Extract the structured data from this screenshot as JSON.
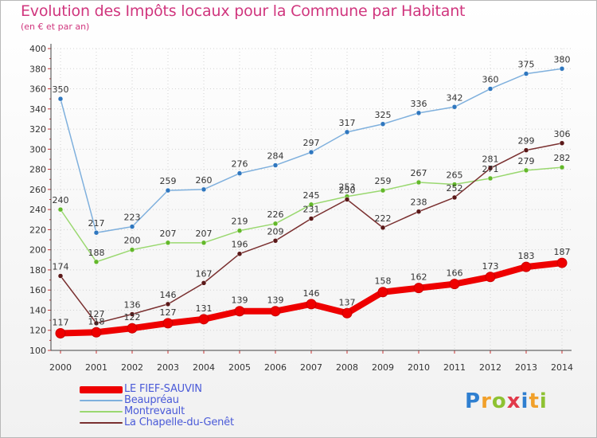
{
  "title": "Evolution des Impôts locaux pour la Commune par Habitant",
  "subtitle": "(en € et par an)",
  "brand": {
    "p": "P",
    "r": "r",
    "o": "o",
    "x": "x",
    "i1": "i",
    "t": "t",
    "i2": "i"
  },
  "colors": {
    "title": "#d0367e",
    "legend_text": "#4a5ad8",
    "grid": "#d2d2d2",
    "axis": "#444444"
  },
  "chart_data": {
    "type": "line",
    "title": "Evolution des Impôts locaux pour la Commune par Habitant",
    "subtitle": "(en € et par an)",
    "xlabel": "",
    "ylabel": "",
    "x": [
      2000,
      2001,
      2002,
      2003,
      2004,
      2005,
      2006,
      2007,
      2008,
      2009,
      2010,
      2011,
      2012,
      2013,
      2014
    ],
    "ylim": [
      100,
      400
    ],
    "yticks": [
      100,
      120,
      140,
      160,
      180,
      200,
      220,
      240,
      260,
      280,
      300,
      320,
      340,
      360,
      380,
      400
    ],
    "grid": true,
    "legend_position": "bottom-left",
    "series": [
      {
        "name": "LE FIEF-SAUVIN",
        "color": "#ee0000",
        "marker": "#ee0000",
        "values": [
          117,
          118,
          122,
          127,
          131,
          139,
          139,
          146,
          137,
          158,
          162,
          166,
          173,
          183,
          187
        ],
        "labels": [
          "117",
          "118",
          "122",
          "127",
          "131",
          "139",
          "139",
          "146",
          "137",
          "158",
          "162",
          "166",
          "173",
          "183",
          "187"
        ],
        "bold": true
      },
      {
        "name": "Beaupréau",
        "color": "#7fb0dd",
        "marker": "#2f77bf",
        "values": [
          350,
          217,
          223,
          259,
          260,
          276,
          284,
          297,
          317,
          325,
          336,
          342,
          360,
          375,
          380
        ],
        "labels": [
          "350",
          "217",
          "223",
          "259",
          "260",
          "276",
          "284",
          "297",
          "317",
          "325",
          "336",
          "342",
          "360",
          "375",
          "380"
        ]
      },
      {
        "name": "Montrevault",
        "color": "#9ad870",
        "marker": "#63b82a",
        "values": [
          240,
          188,
          200,
          207,
          207,
          219,
          226,
          245,
          253,
          259,
          267,
          265,
          271,
          279,
          282
        ],
        "labels": [
          "240",
          "188",
          "200",
          "207",
          "207",
          "219",
          "226",
          "245",
          "253",
          "259",
          "267",
          "265",
          "271",
          "279",
          "282"
        ]
      },
      {
        "name": "La Chapelle-du-Genêt",
        "color": "#7a3030",
        "marker": "#5a1818",
        "values": [
          174,
          127,
          136,
          146,
          167,
          196,
          209,
          231,
          250,
          222,
          238,
          252,
          281,
          299,
          306
        ],
        "labels": [
          "174",
          "127",
          "136",
          "146",
          "167",
          "196",
          "209",
          "231",
          "250",
          "222",
          "238",
          "252",
          "281",
          "299",
          "306"
        ]
      }
    ]
  }
}
